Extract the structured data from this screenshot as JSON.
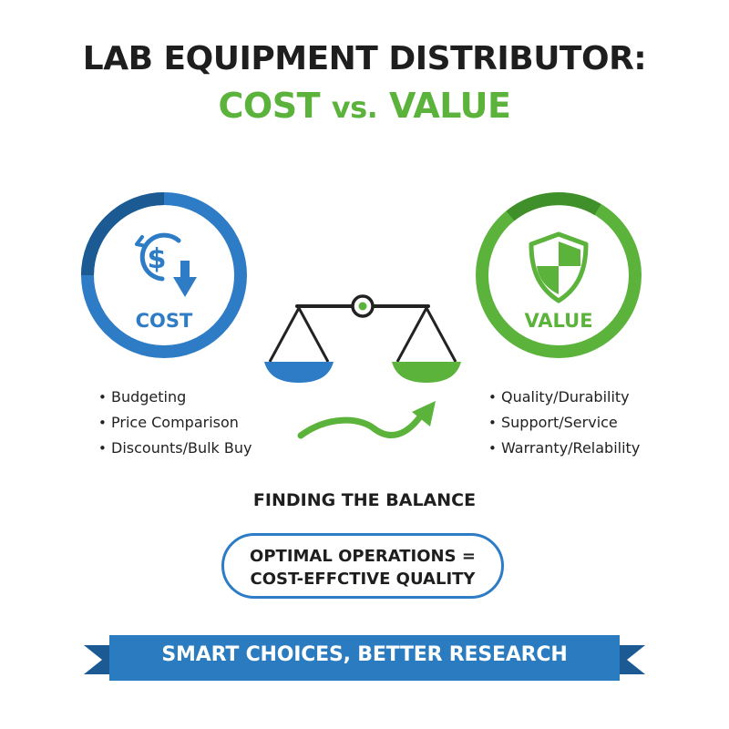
{
  "title": {
    "line1": "LAB EQUIPMENT DISTRIBUTOR:",
    "line2_main": "COST",
    "line2_vs": "vs.",
    "line2_end": "VALUE"
  },
  "cost": {
    "label": "COST",
    "icon": "dollar-down-icon",
    "items": [
      "Budgeting",
      "Price Comparison",
      "Discounts/Bulk Buy"
    ]
  },
  "value": {
    "label": "VALUE",
    "icon": "shield-icon",
    "items": [
      "Quality/Durability",
      "Support/Service",
      "Warranty/Relability"
    ]
  },
  "balance": {
    "heading": "FINDING THE BALANCE",
    "pill_line1": "OPTIMAL OPERATIONS =",
    "pill_line2": "COST-EFFCTIVE QUALITY"
  },
  "banner": {
    "text": "SMART CHOICES, BETTER RESEARCH"
  },
  "colors": {
    "blue": "#2d7cc5",
    "dark_blue": "#1c5a93",
    "green": "#5bb33b",
    "dark_green": "#3f8f2a",
    "banner": "#2a7bbf"
  }
}
